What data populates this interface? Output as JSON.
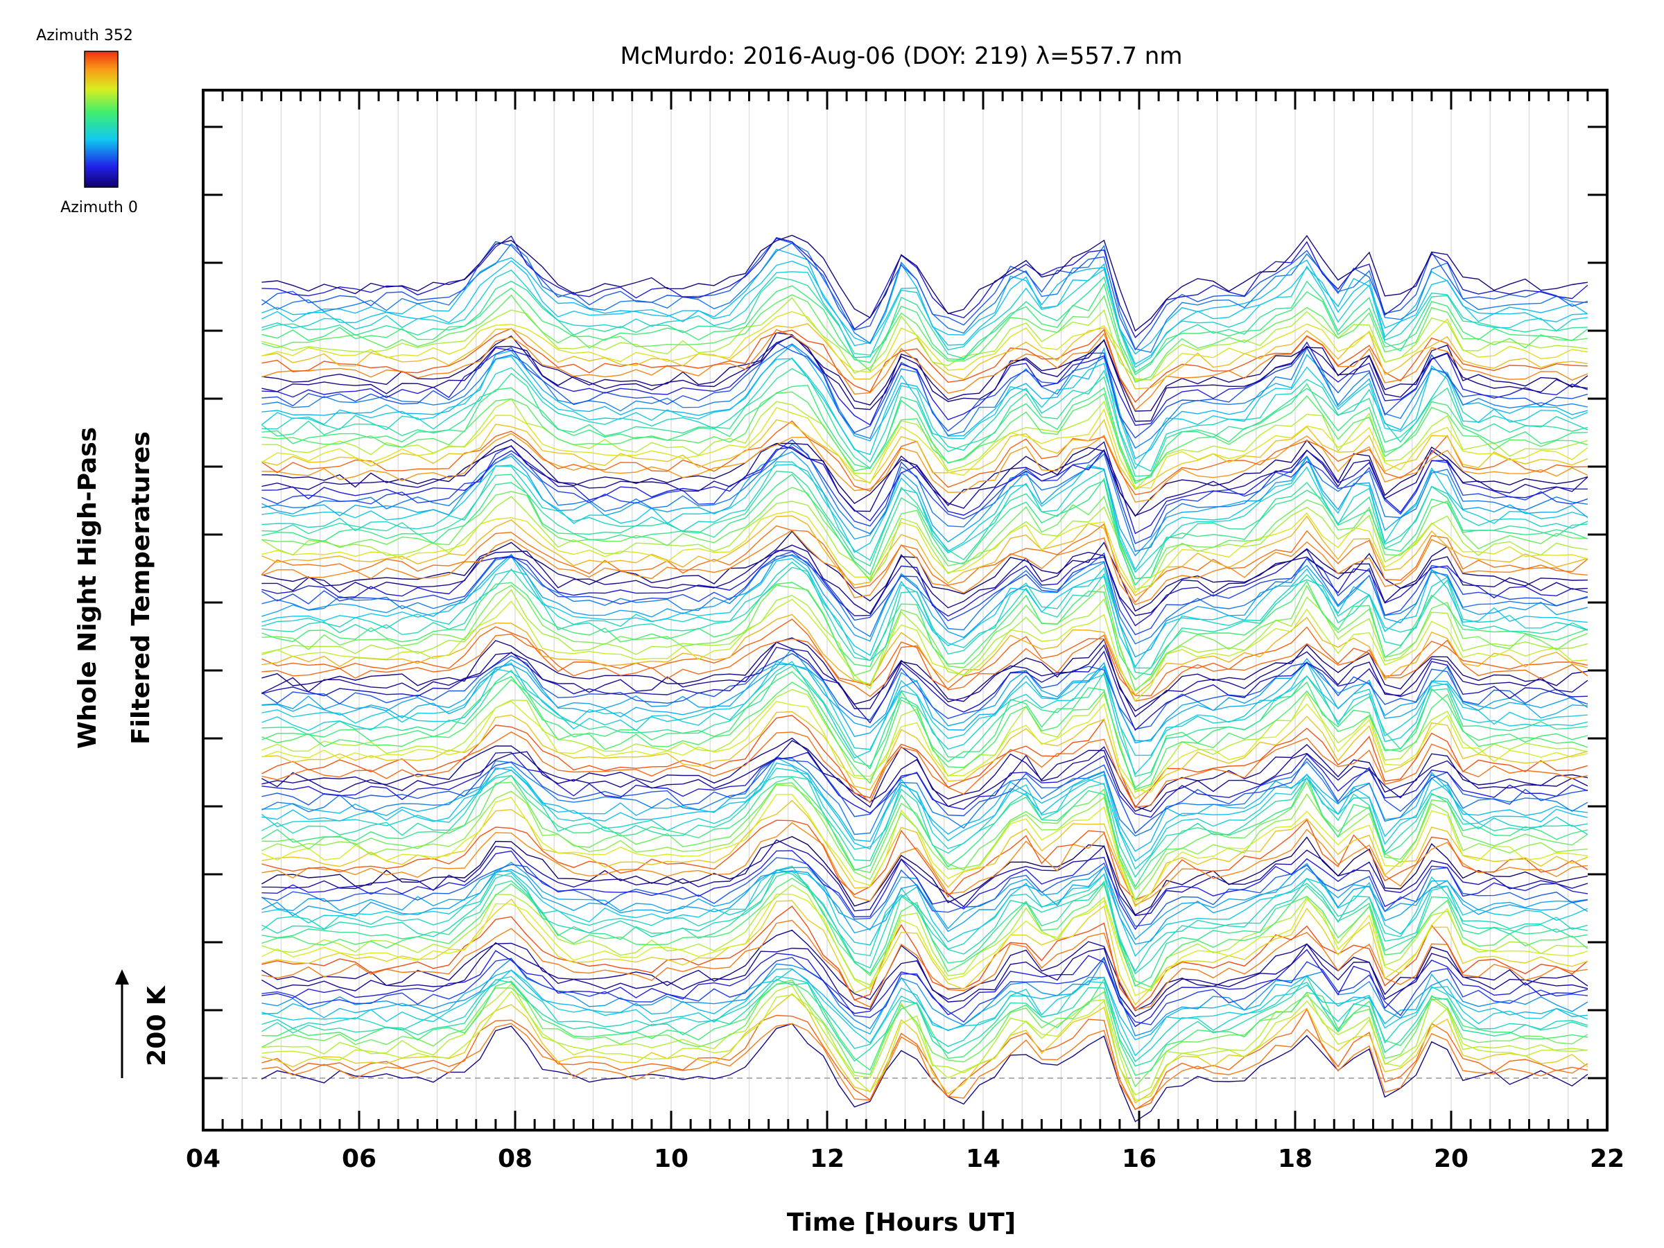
{
  "chart_data": {
    "type": "line",
    "title": "McMurdo: 2016-Aug-06 (DOY: 219) λ=557.7 nm",
    "xlabel": "Time [Hours UT]",
    "ylabel_line1": "Whole Night High-Pass",
    "ylabel_line2": "Filtered Temperatures",
    "scale_label": "200 K",
    "xlim": [
      4,
      22
    ],
    "x_ticks": [
      "04",
      "06",
      "08",
      "10",
      "12",
      "14",
      "16",
      "18",
      "20",
      "22"
    ],
    "x_tick_values": [
      4,
      6,
      8,
      10,
      12,
      14,
      16,
      18,
      20,
      22
    ],
    "time_start": 4.75,
    "time_end": 21.85,
    "time_step": 0.2,
    "azimuth_min": 0,
    "azimuth_max": 352,
    "legend": {
      "top_label": "Azimuth 352",
      "bottom_label": "Azimuth 0"
    },
    "traces_per_group": 16,
    "group_count": 8,
    "baseline_value": 0,
    "events": [
      {
        "time": 7.9,
        "amplitude": 2.6,
        "width": 0.3
      },
      {
        "time": 11.5,
        "amplitude": 2.8,
        "width": 0.35
      },
      {
        "time": 13.0,
        "amplitude": 2.1,
        "width": 0.2
      },
      {
        "time": 13.6,
        "amplitude": -1.3,
        "width": 0.25
      },
      {
        "time": 14.5,
        "amplitude": 1.6,
        "width": 0.18
      },
      {
        "time": 15.1,
        "amplitude": 1.4,
        "width": 0.12
      },
      {
        "time": 15.5,
        "amplitude": 2.7,
        "width": 0.15
      },
      {
        "time": 16.0,
        "amplitude": -2.3,
        "width": 0.2
      },
      {
        "time": 17.8,
        "amplitude": 1.2,
        "width": 0.2
      },
      {
        "time": 18.2,
        "amplitude": 2.2,
        "width": 0.15
      },
      {
        "time": 18.9,
        "amplitude": 1.7,
        "width": 0.15
      },
      {
        "time": 19.2,
        "amplitude": -1.2,
        "width": 0.12
      },
      {
        "time": 19.85,
        "amplitude": 2.3,
        "width": 0.13
      },
      {
        "time": 12.5,
        "amplitude": -1.8,
        "width": 0.25
      }
    ]
  }
}
